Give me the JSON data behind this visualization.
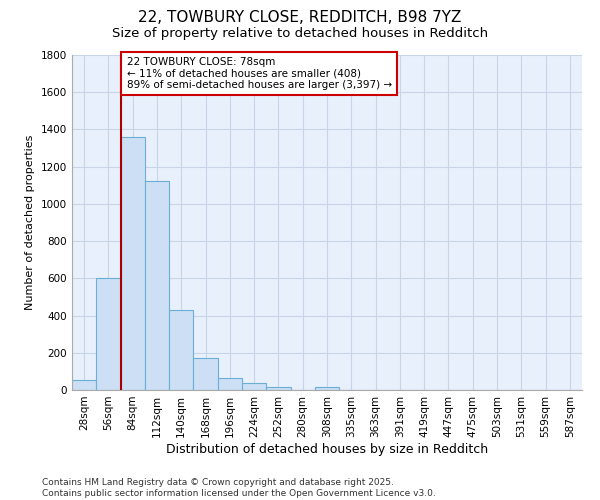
{
  "title1": "22, TOWBURY CLOSE, REDDITCH, B98 7YZ",
  "title2": "Size of property relative to detached houses in Redditch",
  "xlabel": "Distribution of detached houses by size in Redditch",
  "ylabel": "Number of detached properties",
  "categories": [
    "28sqm",
    "56sqm",
    "84sqm",
    "112sqm",
    "140sqm",
    "168sqm",
    "196sqm",
    "224sqm",
    "252sqm",
    "280sqm",
    "308sqm",
    "335sqm",
    "363sqm",
    "391sqm",
    "419sqm",
    "447sqm",
    "475sqm",
    "503sqm",
    "531sqm",
    "559sqm",
    "587sqm"
  ],
  "values": [
    55,
    600,
    1360,
    1125,
    430,
    170,
    65,
    38,
    18,
    0,
    15,
    0,
    0,
    0,
    0,
    0,
    0,
    0,
    0,
    0,
    0
  ],
  "bar_color": "#ccdff5",
  "bar_edge_color": "#6baed6",
  "bg_color": "#e8f0fb",
  "fig_bg_color": "#ffffff",
  "grid_color": "#c8d4e8",
  "vline_color": "#aa0000",
  "vline_x": 1.5,
  "annotation_text": "22 TOWBURY CLOSE: 78sqm\n← 11% of detached houses are smaller (408)\n89% of semi-detached houses are larger (3,397) →",
  "ann_box_edgecolor": "#cc0000",
  "ylim_max": 1800,
  "yticks": [
    0,
    200,
    400,
    600,
    800,
    1000,
    1200,
    1400,
    1600,
    1800
  ],
  "footer": "Contains HM Land Registry data © Crown copyright and database right 2025.\nContains public sector information licensed under the Open Government Licence v3.0.",
  "title1_fontsize": 11,
  "title2_fontsize": 9.5,
  "ylabel_fontsize": 8,
  "xlabel_fontsize": 9,
  "tick_fontsize": 7.5,
  "ann_fontsize": 7.5,
  "footer_fontsize": 6.5
}
